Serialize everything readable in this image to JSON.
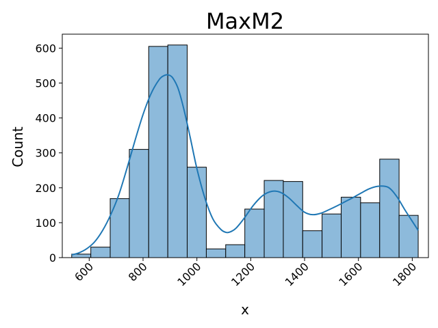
{
  "chart_data": {
    "type": "bar",
    "title": "MaxM2",
    "xlabel": "x",
    "ylabel": "Count",
    "xlim": [
      500,
      1860
    ],
    "ylim": [
      0,
      640
    ],
    "xticks": [
      600,
      800,
      1000,
      1200,
      1400,
      1600,
      1800
    ],
    "yticks": [
      0,
      100,
      200,
      300,
      400,
      500,
      600
    ],
    "bins": [
      {
        "x0": 535,
        "x1": 606,
        "count": 10
      },
      {
        "x0": 606,
        "x1": 678,
        "count": 30
      },
      {
        "x0": 678,
        "x1": 749,
        "count": 169
      },
      {
        "x0": 749,
        "x1": 821,
        "count": 310
      },
      {
        "x0": 821,
        "x1": 892,
        "count": 605
      },
      {
        "x0": 892,
        "x1": 964,
        "count": 609
      },
      {
        "x0": 964,
        "x1": 1035,
        "count": 259
      },
      {
        "x0": 1035,
        "x1": 1107,
        "count": 25
      },
      {
        "x0": 1107,
        "x1": 1178,
        "count": 37
      },
      {
        "x0": 1178,
        "x1": 1250,
        "count": 139
      },
      {
        "x0": 1250,
        "x1": 1321,
        "count": 221
      },
      {
        "x0": 1321,
        "x1": 1393,
        "count": 218
      },
      {
        "x0": 1393,
        "x1": 1465,
        "count": 77
      },
      {
        "x0": 1465,
        "x1": 1536,
        "count": 125
      },
      {
        "x0": 1536,
        "x1": 1608,
        "count": 173
      },
      {
        "x0": 1608,
        "x1": 1679,
        "count": 157
      },
      {
        "x0": 1679,
        "x1": 1751,
        "count": 282
      },
      {
        "x0": 1751,
        "x1": 1822,
        "count": 121
      }
    ],
    "kde": {
      "x": [
        535,
        560,
        590,
        620,
        650,
        680,
        710,
        740,
        770,
        800,
        830,
        860,
        880,
        895,
        910,
        930,
        950,
        975,
        1000,
        1030,
        1060,
        1090,
        1110,
        1125,
        1145,
        1175,
        1210,
        1245,
        1280,
        1310,
        1340,
        1370,
        1400,
        1430,
        1460,
        1490,
        1520,
        1550,
        1580,
        1610,
        1640,
        1670,
        1700,
        1720,
        1745,
        1770,
        1795,
        1822
      ],
      "y": [
        8,
        13,
        25,
        45,
        78,
        123,
        180,
        255,
        335,
        410,
        470,
        510,
        522,
        523,
        515,
        485,
        430,
        345,
        255,
        170,
        110,
        80,
        72,
        74,
        84,
        112,
        150,
        178,
        190,
        187,
        172,
        150,
        130,
        123,
        127,
        137,
        148,
        160,
        172,
        185,
        197,
        204,
        204,
        196,
        172,
        140,
        110,
        78
      ]
    },
    "colors": {
      "bar_fill": "#8dbadb",
      "bar_edge": "#000000",
      "kde_line": "#1f77b4"
    },
    "grid": false,
    "legend": "none"
  }
}
